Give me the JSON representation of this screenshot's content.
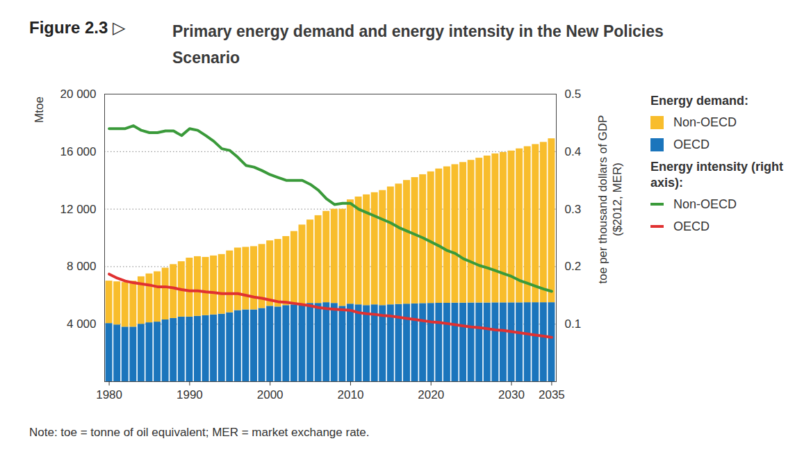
{
  "chart_data": {
    "type": "bar",
    "figure_label": "Figure 2.3 ▷",
    "title": "Primary energy demand and energy intensity in the New Policies Scenario",
    "note": "Note: toe = tonne of oil equivalent; MER = market exchange rate.",
    "ylabel": "Mtoe",
    "y2label": "toe per thousand dollars of GDP ($2012, MER)",
    "legend_titles": [
      "Energy demand:",
      "Energy intensity (right axis):"
    ],
    "legend": "right",
    "stacked": true,
    "grid": true,
    "x": [
      1980,
      1981,
      1982,
      1983,
      1984,
      1985,
      1986,
      1987,
      1988,
      1989,
      1990,
      1991,
      1992,
      1993,
      1994,
      1995,
      1996,
      1997,
      1998,
      1999,
      2000,
      2001,
      2002,
      2003,
      2004,
      2005,
      2006,
      2007,
      2008,
      2009,
      2010,
      2011,
      2012,
      2013,
      2014,
      2015,
      2016,
      2017,
      2018,
      2019,
      2020,
      2021,
      2022,
      2023,
      2024,
      2025,
      2026,
      2027,
      2028,
      2029,
      2030,
      2031,
      2032,
      2033,
      2034,
      2035
    ],
    "xticks": [
      1980,
      1990,
      2000,
      2010,
      2020,
      2030,
      2035
    ],
    "ylim": [
      0,
      20000
    ],
    "yticks": [
      {
        "value": 4000,
        "label": "4 000"
      },
      {
        "value": 8000,
        "label": "8 000"
      },
      {
        "value": 12000,
        "label": "12 000"
      },
      {
        "value": 16000,
        "label": "16 000"
      },
      {
        "value": 20000,
        "label": "20 000"
      }
    ],
    "y2lim": [
      0,
      0.5
    ],
    "y2ticks": [
      0.1,
      0.2,
      0.3,
      0.4,
      0.5
    ],
    "series": [
      {
        "name": "Non-OECD",
        "type": "bar",
        "color": "#f8bd2c",
        "values": [
          2950,
          3000,
          3100,
          3200,
          3300,
          3400,
          3500,
          3600,
          3750,
          3850,
          4100,
          4150,
          4050,
          4100,
          4150,
          4300,
          4350,
          4350,
          4400,
          4450,
          4550,
          4700,
          4800,
          5100,
          5500,
          5800,
          6100,
          6350,
          6550,
          6750,
          7250,
          7500,
          7700,
          7800,
          8000,
          8200,
          8370,
          8600,
          8780,
          8960,
          9150,
          9340,
          9490,
          9630,
          9780,
          9920,
          10070,
          10220,
          10360,
          10460,
          10560,
          10710,
          10850,
          11000,
          11150,
          11400
        ]
      },
      {
        "name": "OECD",
        "type": "bar",
        "color": "#1b75bc",
        "values": [
          4050,
          3950,
          3800,
          3800,
          4000,
          4100,
          4150,
          4300,
          4400,
          4500,
          4500,
          4550,
          4600,
          4650,
          4700,
          4800,
          4950,
          5000,
          5000,
          5100,
          5250,
          5200,
          5300,
          5350,
          5400,
          5450,
          5450,
          5500,
          5450,
          5250,
          5400,
          5350,
          5300,
          5350,
          5300,
          5350,
          5380,
          5400,
          5420,
          5440,
          5450,
          5460,
          5460,
          5470,
          5470,
          5480,
          5480,
          5480,
          5490,
          5490,
          5490,
          5490,
          5500,
          5500,
          5500,
          5500
        ]
      },
      {
        "name": "Non-OECD",
        "type": "line",
        "axis": "y2",
        "color": "#3a9a3a",
        "values": [
          0.44,
          0.44,
          0.44,
          0.445,
          0.437,
          0.433,
          0.433,
          0.436,
          0.436,
          0.428,
          0.44,
          0.437,
          0.428,
          0.418,
          0.405,
          0.402,
          0.39,
          0.376,
          0.373,
          0.367,
          0.36,
          0.355,
          0.35,
          0.35,
          0.35,
          0.343,
          0.333,
          0.318,
          0.308,
          0.31,
          0.31,
          0.3,
          0.294,
          0.288,
          0.282,
          0.276,
          0.268,
          0.262,
          0.256,
          0.25,
          0.243,
          0.236,
          0.228,
          0.223,
          0.214,
          0.208,
          0.202,
          0.198,
          0.193,
          0.188,
          0.183,
          0.176,
          0.171,
          0.166,
          0.161,
          0.157
        ]
      },
      {
        "name": "OECD",
        "type": "line",
        "axis": "y2",
        "color": "#e03131",
        "values": [
          0.187,
          0.18,
          0.175,
          0.172,
          0.17,
          0.168,
          0.165,
          0.165,
          0.163,
          0.16,
          0.158,
          0.158,
          0.156,
          0.155,
          0.153,
          0.153,
          0.153,
          0.15,
          0.147,
          0.145,
          0.142,
          0.139,
          0.138,
          0.136,
          0.134,
          0.132,
          0.129,
          0.127,
          0.126,
          0.125,
          0.124,
          0.12,
          0.118,
          0.117,
          0.115,
          0.114,
          0.112,
          0.11,
          0.108,
          0.106,
          0.104,
          0.103,
          0.101,
          0.099,
          0.097,
          0.095,
          0.094,
          0.092,
          0.09,
          0.089,
          0.087,
          0.085,
          0.083,
          0.081,
          0.079,
          0.077
        ]
      }
    ]
  }
}
